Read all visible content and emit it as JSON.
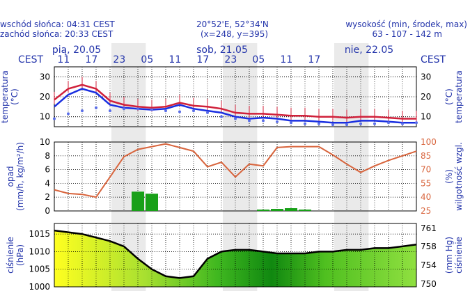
{
  "header": {
    "sunrise": "wschód słońca: 04:31 CEST",
    "sunset": "zachód słońca: 20:33 CEST",
    "coords": "20°52'E, 52°34'N",
    "grid": "(x=248,  y=395)",
    "alt_label": "wysokość (min, środek, max)",
    "alt_values": "63 - 107 - 142 m"
  },
  "colors": {
    "text": "#2233aa",
    "temp": "#d0203a",
    "dewpoint": "#5a6ee8",
    "temp2": "#1a2fe0",
    "humidity": "#d8643c",
    "precip": "#18a018",
    "pressure": "#000000",
    "night": "#d9d9d9"
  },
  "chart_data": [
    {
      "type": "line",
      "title": "",
      "tz_label": "CEST",
      "days": [
        "pią, 20.05",
        "sob, 21.05",
        "nie, 22.05"
      ],
      "hour_ticks": [
        "11",
        "17",
        "23",
        "05",
        "11",
        "17",
        "23",
        "05",
        "11",
        "17"
      ],
      "ylabel_left": "temperatura\n(°C)",
      "ylabel_right": "(°C)\ntemperatura",
      "ylim": [
        5,
        35
      ],
      "yticks": [
        10,
        20,
        30
      ],
      "x_hours_from_0900_day1": [
        0,
        3,
        6,
        9,
        12,
        15,
        18,
        21,
        24,
        27,
        30,
        33,
        36,
        39,
        42,
        45,
        48,
        51,
        54,
        57,
        60,
        63,
        66,
        69,
        72,
        75,
        78
      ],
      "series": [
        {
          "name": "",
          "values": [
            18.5,
            24,
            26,
            24,
            18,
            16,
            15,
            14.5,
            15,
            17,
            15.5,
            15,
            14,
            12,
            11.5,
            11.5,
            11,
            10.5,
            10.5,
            10,
            10,
            9.5,
            10,
            10,
            9.5,
            9,
            9
          ]
        },
        {
          "name": "",
          "values": [
            15,
            21,
            24,
            22,
            16,
            14.5,
            14,
            13.5,
            14,
            16,
            14,
            13,
            12,
            10,
            9,
            9.5,
            9,
            8,
            8,
            7.5,
            7,
            7,
            8,
            8,
            7.5,
            7,
            7
          ]
        },
        {
          "name": "",
          "values": [
            9,
            11.5,
            13,
            14.5,
            13,
            14,
            14,
            13.5,
            13,
            12.5,
            13,
            12,
            10,
            9,
            8,
            8,
            7.5,
            7,
            6.5,
            6.5,
            6,
            6,
            6.5,
            6.5,
            7,
            6.5,
            7
          ]
        }
      ]
    },
    {
      "type": "line",
      "title": "",
      "ylabel_left": "opad\n(mm/h, kg/m²/h)",
      "ylabel_right": "(%)\nwilgotność wzgl.",
      "ylim_left": [
        0,
        10
      ],
      "yticks_left": [
        0,
        2,
        4,
        6,
        8,
        10
      ],
      "ylim_right": [
        25,
        100
      ],
      "yticks_right": [
        25,
        40,
        55,
        70,
        85,
        100
      ],
      "x_hours_from_0900_day1": [
        0,
        3,
        6,
        9,
        12,
        15,
        18,
        21,
        24,
        27,
        30,
        33,
        36,
        39,
        42,
        45,
        48,
        51,
        54,
        57,
        60,
        63,
        66,
        69,
        72,
        75,
        78
      ],
      "series": [
        {
          "name": "",
          "axis": "right",
          "values": [
            48,
            44,
            43,
            40,
            62,
            84,
            92,
            95,
            98,
            94,
            90,
            73,
            78,
            62,
            76,
            74,
            94,
            95,
            95,
            95,
            86,
            76,
            67,
            74,
            80,
            85,
            90
          ]
        },
        {
          "name": "",
          "axis": "left",
          "type": "bar",
          "values": [
            0,
            0,
            0,
            0,
            0,
            0,
            2.8,
            2.5,
            0,
            0,
            0,
            0,
            0,
            0,
            0,
            0.2,
            0.3,
            0.4,
            0.2,
            0,
            0,
            0,
            0,
            0,
            0,
            0,
            0
          ]
        }
      ]
    },
    {
      "type": "area",
      "title": "",
      "ylabel_left": "ciśnienie\n(hPa)",
      "ylabel_right": "(mm Hg)\nciśnienie",
      "ylim_left": [
        1000,
        1018
      ],
      "yticks_left": [
        1000,
        1005,
        1010,
        1015
      ],
      "yticks_right": [
        750,
        754,
        758,
        761
      ],
      "x_hours_from_0900_day1": [
        0,
        3,
        6,
        9,
        12,
        15,
        18,
        21,
        24,
        27,
        30,
        33,
        36,
        39,
        42,
        45,
        48,
        51,
        54,
        57,
        60,
        63,
        66,
        69,
        72,
        75,
        78
      ],
      "series": [
        {
          "name": "",
          "values": [
            1016,
            1015.5,
            1015,
            1014,
            1013,
            1011.5,
            1008,
            1005,
            1003,
            1002.5,
            1003,
            1008,
            1010,
            1010.5,
            1010.5,
            1010,
            1009.5,
            1009.5,
            1009.5,
            1010,
            1010,
            1010.5,
            1010.5,
            1011,
            1011,
            1011.5,
            1012
          ]
        }
      ]
    }
  ]
}
